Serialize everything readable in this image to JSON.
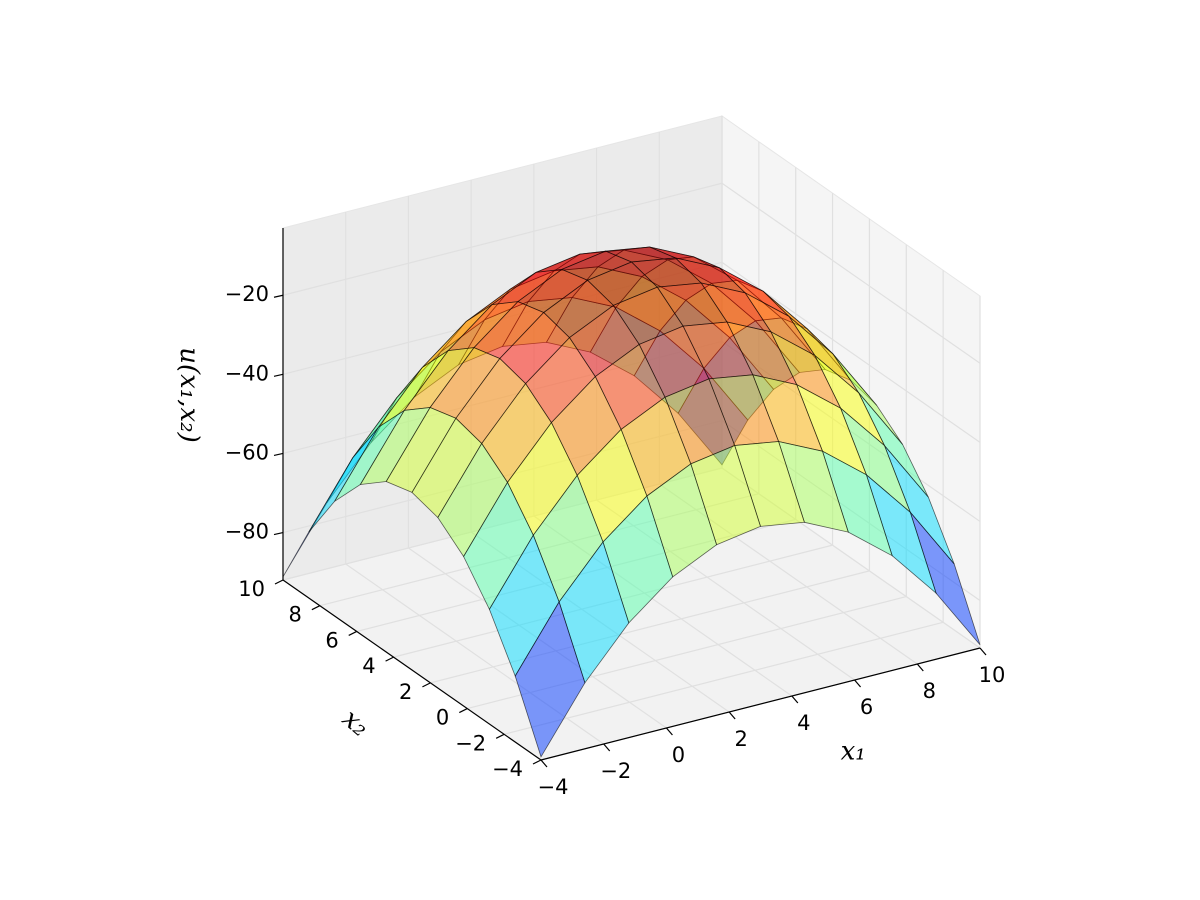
{
  "chart_data": {
    "type": "surface",
    "x": [
      -4,
      -2.6,
      -1.2,
      0.2,
      1.6,
      3,
      4.4,
      5.8,
      7.2,
      8.6,
      10
    ],
    "y": [
      -4,
      -2.6,
      -1.2,
      0.2,
      1.6,
      3,
      4.4,
      5.8,
      7.2,
      8.6,
      10
    ],
    "values": [
      [
        -91.2,
        -75.3,
        -63.0,
        -54.2,
        -48.9,
        -47.1,
        -48.9,
        -54.2,
        -63.0,
        -75.3,
        -91.2
      ],
      [
        -75.3,
        -59.4,
        -47.1,
        -38.3,
        -33.0,
        -31.2,
        -33.0,
        -38.3,
        -47.1,
        -59.4,
        -75.3
      ],
      [
        -63.0,
        -47.1,
        -34.8,
        -26.0,
        -20.7,
        -18.9,
        -20.7,
        -26.0,
        -34.8,
        -47.1,
        -63.0
      ],
      [
        -54.2,
        -38.3,
        -26.0,
        -17.2,
        -11.9,
        -10.1,
        -11.9,
        -17.2,
        -26.0,
        -38.3,
        -54.2
      ],
      [
        -48.9,
        -33.0,
        -20.7,
        -11.9,
        -6.6,
        -4.8,
        -6.6,
        -11.9,
        -20.7,
        -33.0,
        -48.9
      ],
      [
        -47.1,
        -31.2,
        -18.9,
        -10.1,
        -4.8,
        -3.0,
        -4.8,
        -10.1,
        -18.9,
        -31.2,
        -47.1
      ],
      [
        -48.9,
        -33.0,
        -20.7,
        -11.9,
        -6.6,
        -4.8,
        -6.6,
        -11.9,
        -20.7,
        -33.0,
        -48.9
      ],
      [
        -54.2,
        -38.3,
        -26.0,
        -17.2,
        -11.9,
        -10.1,
        -11.9,
        -17.2,
        -26.0,
        -38.3,
        -54.2
      ],
      [
        -63.0,
        -47.1,
        -34.8,
        -26.0,
        -20.7,
        -18.9,
        -20.7,
        -26.0,
        -34.8,
        -47.1,
        -63.0
      ],
      [
        -75.3,
        -59.4,
        -47.1,
        -38.3,
        -33.0,
        -31.2,
        -33.0,
        -38.3,
        -47.1,
        -59.4,
        -75.3
      ],
      [
        -91.2,
        -75.3,
        -63.0,
        -54.2,
        -48.9,
        -47.1,
        -48.9,
        -54.2,
        -63.0,
        -75.3,
        -91.2
      ]
    ],
    "xlabel": "x₁",
    "ylabel": "x₂",
    "zlabel": "u(x₁,x₂)",
    "xlim": [
      -4,
      10
    ],
    "ylim": [
      -4,
      10
    ],
    "zlim": [
      -92,
      -3
    ],
    "xticks": [
      {
        "value": -4,
        "label": "−4"
      },
      {
        "value": -2,
        "label": "−2"
      },
      0,
      2,
      4,
      6,
      8,
      10
    ],
    "yticks": [
      {
        "value": -4,
        "label": "−4"
      },
      {
        "value": -2,
        "label": "−2"
      },
      0,
      2,
      4,
      6,
      8,
      10
    ],
    "zticks": [
      {
        "value": -80,
        "label": "−80"
      },
      {
        "value": -60,
        "label": "−60"
      },
      {
        "value": -40,
        "label": "−40"
      },
      {
        "value": -20,
        "label": "−20"
      }
    ],
    "colormap": "jet",
    "alpha": 0.5,
    "grid": true
  }
}
